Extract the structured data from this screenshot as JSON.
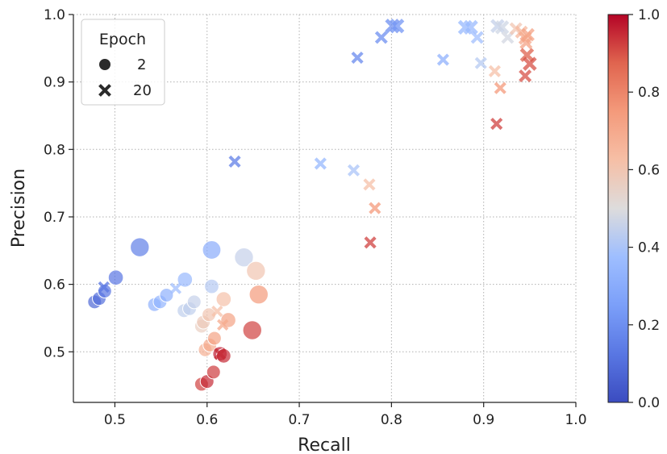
{
  "chart_data": {
    "type": "scatter",
    "xlabel": "Recall",
    "ylabel": "Precision",
    "xlim": [
      0.455,
      1.0
    ],
    "ylim": [
      0.425,
      1.0
    ],
    "x_ticks": [
      0.5,
      0.6,
      0.7,
      0.8,
      0.9,
      1.0
    ],
    "x_tick_labels": [
      "0.5",
      "0.6",
      "0.7",
      "0.8",
      "0.9",
      "1.0"
    ],
    "y_ticks": [
      0.5,
      0.6,
      0.7,
      0.8,
      0.9,
      1.0
    ],
    "y_tick_labels": [
      "0.5",
      "0.6",
      "0.7",
      "0.8",
      "0.9",
      "1.0"
    ],
    "grid": true,
    "colormap": "coolwarm",
    "colorbar": {
      "range": [
        0.0,
        1.0
      ],
      "ticks": [
        0.0,
        0.2,
        0.4,
        0.6,
        0.8,
        1.0
      ],
      "tick_labels": [
        "0.0",
        "0.2",
        "0.4",
        "0.6",
        "0.8",
        "1.0"
      ]
    },
    "legend": {
      "title": "Epoch",
      "placement": "top-left",
      "entries": [
        {
          "label": "2",
          "marker": "circle"
        },
        {
          "label": "20",
          "marker": "x"
        }
      ]
    },
    "series": [
      {
        "name": "2",
        "marker": "circle",
        "points": [
          {
            "x": 0.478,
            "y": 0.574,
            "c": 0.08,
            "s": 1.0
          },
          {
            "x": 0.483,
            "y": 0.579,
            "c": 0.1,
            "s": 1.0
          },
          {
            "x": 0.489,
            "y": 0.59,
            "c": 0.12,
            "s": 1.0
          },
          {
            "x": 0.501,
            "y": 0.61,
            "c": 0.12,
            "s": 1.2
          },
          {
            "x": 0.527,
            "y": 0.655,
            "c": 0.15,
            "s": 1.9
          },
          {
            "x": 0.543,
            "y": 0.57,
            "c": 0.32,
            "s": 1.0
          },
          {
            "x": 0.549,
            "y": 0.574,
            "c": 0.33,
            "s": 1.0
          },
          {
            "x": 0.556,
            "y": 0.584,
            "c": 0.32,
            "s": 1.0
          },
          {
            "x": 0.575,
            "y": 0.561,
            "c": 0.44,
            "s": 1.0
          },
          {
            "x": 0.576,
            "y": 0.607,
            "c": 0.35,
            "s": 1.2
          },
          {
            "x": 0.581,
            "y": 0.564,
            "c": 0.44,
            "s": 1.0
          },
          {
            "x": 0.586,
            "y": 0.574,
            "c": 0.45,
            "s": 1.0
          },
          {
            "x": 0.594,
            "y": 0.538,
            "c": 0.56,
            "s": 1.0
          },
          {
            "x": 0.596,
            "y": 0.544,
            "c": 0.58,
            "s": 1.0
          },
          {
            "x": 0.602,
            "y": 0.555,
            "c": 0.6,
            "s": 1.0
          },
          {
            "x": 0.605,
            "y": 0.597,
            "c": 0.42,
            "s": 1.1
          },
          {
            "x": 0.605,
            "y": 0.651,
            "c": 0.3,
            "s": 1.8
          },
          {
            "x": 0.598,
            "y": 0.503,
            "c": 0.68,
            "s": 1.0
          },
          {
            "x": 0.603,
            "y": 0.51,
            "c": 0.7,
            "s": 1.0
          },
          {
            "x": 0.608,
            "y": 0.52,
            "c": 0.72,
            "s": 1.0
          },
          {
            "x": 0.618,
            "y": 0.578,
            "c": 0.62,
            "s": 1.2
          },
          {
            "x": 0.623,
            "y": 0.547,
            "c": 0.72,
            "s": 1.2
          },
          {
            "x": 0.64,
            "y": 0.64,
            "c": 0.45,
            "s": 1.9
          },
          {
            "x": 0.653,
            "y": 0.62,
            "c": 0.6,
            "s": 1.9
          },
          {
            "x": 0.656,
            "y": 0.585,
            "c": 0.75,
            "s": 1.9
          },
          {
            "x": 0.649,
            "y": 0.532,
            "c": 0.92,
            "s": 1.9
          },
          {
            "x": 0.594,
            "y": 0.452,
            "c": 0.92,
            "s": 1.0
          },
          {
            "x": 0.6,
            "y": 0.456,
            "c": 0.95,
            "s": 1.0
          },
          {
            "x": 0.607,
            "y": 0.47,
            "c": 0.93,
            "s": 1.0
          },
          {
            "x": 0.614,
            "y": 0.497,
            "c": 0.97,
            "s": 1.1
          },
          {
            "x": 0.618,
            "y": 0.494,
            "c": 0.95,
            "s": 1.1
          }
        ]
      },
      {
        "name": "20",
        "marker": "x",
        "points": [
          {
            "x": 0.488,
            "y": 0.596,
            "c": 0.12,
            "s": 0.8
          },
          {
            "x": 0.63,
            "y": 0.782,
            "c": 0.15,
            "s": 0.9
          },
          {
            "x": 0.763,
            "y": 0.936,
            "c": 0.18,
            "s": 0.9
          },
          {
            "x": 0.789,
            "y": 0.966,
            "c": 0.2,
            "s": 1.0
          },
          {
            "x": 0.801,
            "y": 0.983,
            "c": 0.2,
            "s": 1.3
          },
          {
            "x": 0.806,
            "y": 0.983,
            "c": 0.22,
            "s": 1.3
          },
          {
            "x": 0.856,
            "y": 0.933,
            "c": 0.32,
            "s": 0.9
          },
          {
            "x": 0.88,
            "y": 0.981,
            "c": 0.35,
            "s": 1.3
          },
          {
            "x": 0.886,
            "y": 0.981,
            "c": 0.36,
            "s": 1.3
          },
          {
            "x": 0.893,
            "y": 0.966,
            "c": 0.38,
            "s": 1.0
          },
          {
            "x": 0.897,
            "y": 0.928,
            "c": 0.42,
            "s": 0.9
          },
          {
            "x": 0.915,
            "y": 0.983,
            "c": 0.45,
            "s": 1.2
          },
          {
            "x": 0.92,
            "y": 0.981,
            "c": 0.47,
            "s": 1.2
          },
          {
            "x": 0.926,
            "y": 0.966,
            "c": 0.48,
            "s": 1.0
          },
          {
            "x": 0.935,
            "y": 0.979,
            "c": 0.6,
            "s": 1.0
          },
          {
            "x": 0.941,
            "y": 0.974,
            "c": 0.65,
            "s": 1.0
          },
          {
            "x": 0.945,
            "y": 0.965,
            "c": 0.7,
            "s": 1.1
          },
          {
            "x": 0.948,
            "y": 0.97,
            "c": 0.72,
            "s": 1.1
          },
          {
            "x": 0.946,
            "y": 0.958,
            "c": 0.72,
            "s": 1.0
          },
          {
            "x": 0.912,
            "y": 0.916,
            "c": 0.62,
            "s": 0.9
          },
          {
            "x": 0.918,
            "y": 0.891,
            "c": 0.75,
            "s": 0.9
          },
          {
            "x": 0.947,
            "y": 0.94,
            "c": 0.88,
            "s": 1.2
          },
          {
            "x": 0.95,
            "y": 0.927,
            "c": 0.9,
            "s": 1.2
          },
          {
            "x": 0.945,
            "y": 0.909,
            "c": 0.9,
            "s": 1.0
          },
          {
            "x": 0.914,
            "y": 0.838,
            "c": 0.92,
            "s": 0.9
          },
          {
            "x": 0.723,
            "y": 0.779,
            "c": 0.35,
            "s": 0.9
          },
          {
            "x": 0.759,
            "y": 0.769,
            "c": 0.4,
            "s": 0.9
          },
          {
            "x": 0.776,
            "y": 0.748,
            "c": 0.62,
            "s": 0.9
          },
          {
            "x": 0.782,
            "y": 0.713,
            "c": 0.75,
            "s": 0.9
          },
          {
            "x": 0.777,
            "y": 0.662,
            "c": 0.92,
            "s": 0.9
          },
          {
            "x": 0.566,
            "y": 0.594,
            "c": 0.38,
            "s": 0.8
          },
          {
            "x": 0.611,
            "y": 0.56,
            "c": 0.62,
            "s": 0.8
          },
          {
            "x": 0.617,
            "y": 0.54,
            "c": 0.7,
            "s": 0.8
          },
          {
            "x": 0.614,
            "y": 0.497,
            "c": 0.95,
            "s": 0.9
          }
        ]
      }
    ]
  }
}
